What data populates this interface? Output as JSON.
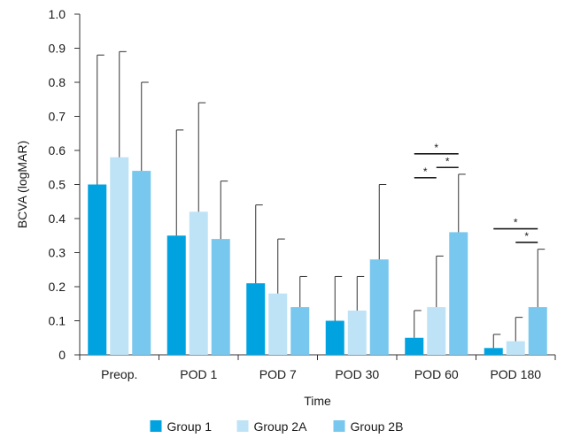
{
  "chart_data": {
    "type": "bar",
    "title": "",
    "xlabel": "Time",
    "ylabel": "BCVA (logMAR)",
    "ylim": [
      0,
      1.0
    ],
    "yticks": [
      "0",
      "0.1",
      "0.2",
      "0.3",
      "0.4",
      "0.5",
      "0.6",
      "0.7",
      "0.8",
      "0.9",
      "1.0"
    ],
    "yticks_values": [
      0,
      0.1,
      0.2,
      0.3,
      0.4,
      0.5,
      0.6,
      0.7,
      0.8,
      0.9,
      1.0
    ],
    "categories": [
      "Preop.",
      "POD 1",
      "POD 7",
      "POD 30",
      "POD 60",
      "POD 180"
    ],
    "series": [
      {
        "name": "Group 1",
        "color": "#00a3e0",
        "values": [
          0.5,
          0.35,
          0.21,
          0.1,
          0.05,
          0.02
        ],
        "error": [
          0.38,
          0.31,
          0.23,
          0.13,
          0.08,
          0.04
        ]
      },
      {
        "name": "Group 2A",
        "color": "#bfe3f6",
        "values": [
          0.58,
          0.42,
          0.18,
          0.13,
          0.14,
          0.04
        ],
        "error": [
          0.31,
          0.32,
          0.16,
          0.1,
          0.15,
          0.07
        ]
      },
      {
        "name": "Group 2B",
        "color": "#78c7ee",
        "values": [
          0.54,
          0.34,
          0.14,
          0.28,
          0.36,
          0.14
        ],
        "error": [
          0.26,
          0.17,
          0.09,
          0.22,
          0.17,
          0.17
        ]
      }
    ],
    "significance": [
      {
        "category": 4,
        "from": 0,
        "to": 2,
        "label": "*",
        "y": 0.59
      },
      {
        "category": 4,
        "from": 0,
        "to": 1,
        "label": "*",
        "y": 0.52
      },
      {
        "category": 4,
        "from": 1,
        "to": 2,
        "label": "*",
        "y": 0.55
      },
      {
        "category": 5,
        "from": 0,
        "to": 2,
        "label": "*",
        "y": 0.37
      },
      {
        "category": 5,
        "from": 1,
        "to": 2,
        "label": "*",
        "y": 0.33
      }
    ],
    "legend": {
      "position": "bottom-center"
    },
    "grid": false
  }
}
